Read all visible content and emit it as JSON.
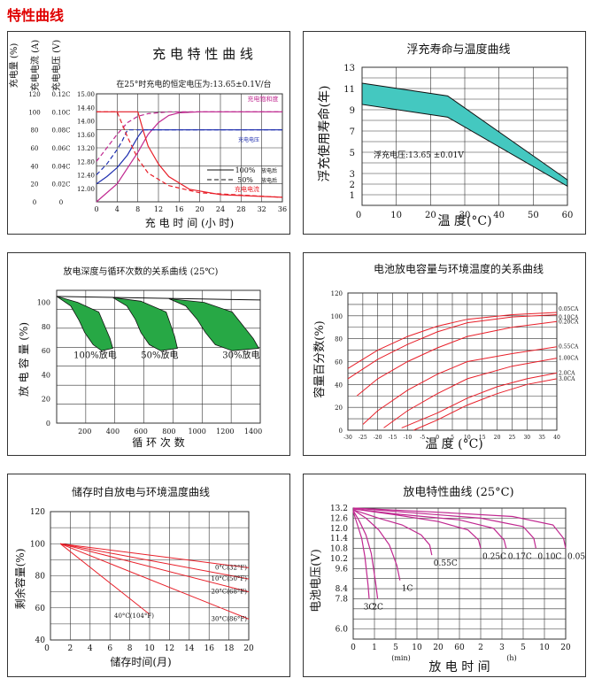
{
  "page_title": "特性曲线",
  "colors": {
    "red": "#e8202a",
    "magenta": "#c02890",
    "blue": "#2030b0",
    "teal": "#44c8c0",
    "green": "#27a845",
    "grid": "#333333",
    "title_red": "#e00000"
  },
  "chart_data": [
    {
      "id": "charge",
      "type": "line",
      "title": "充 电 特 性 曲 线",
      "subtitle": "在25°时充电的恒定电压为:13.65±0.1V/台",
      "xlabel": "充 电 时 间 (小 时)",
      "y_axis_titles": [
        "充电量 (%)",
        "充电电流 (A)",
        "充电电压 (V)"
      ],
      "x_ticks": [
        0,
        4,
        8,
        12,
        16,
        20,
        24,
        28,
        32,
        36
      ],
      "xlim": [
        0,
        36
      ],
      "ylim": [
        0,
        120
      ],
      "y_ticks_charge": [
        0,
        20,
        40,
        60,
        80,
        100,
        120
      ],
      "y_ticks_current": [
        "0",
        "0.02C",
        "0.04C",
        "0.06C",
        "0.08C",
        "0.10C",
        "0.12C"
      ],
      "y_ticks_voltage": [
        "",
        "12.00",
        "12.40",
        "12.80",
        "13.20",
        "13.60",
        "14.00",
        "14.40",
        "15.00"
      ],
      "annotations": [
        "充电饱和度",
        "充电电压",
        "充电电流"
      ],
      "legend": [
        {
          "line": "100%",
          "label": "放电后"
        },
        {
          "line": "50%",
          "label": "放电后"
        }
      ],
      "series": [
        {
          "style": "solid",
          "color": "magenta",
          "points": [
            [
              0,
              0
            ],
            [
              4,
              20
            ],
            [
              8,
              55
            ],
            [
              10,
              75
            ],
            [
              12,
              88
            ],
            [
              14,
              96
            ],
            [
              16,
              99
            ],
            [
              20,
              100
            ],
            [
              36,
              100
            ]
          ]
        },
        {
          "style": "dashed",
          "color": "magenta",
          "points": [
            [
              0,
              45
            ],
            [
              2,
              60
            ],
            [
              4,
              75
            ],
            [
              6,
              88
            ],
            [
              8,
              95
            ],
            [
              10,
              98
            ],
            [
              14,
              100
            ],
            [
              36,
              100
            ]
          ]
        },
        {
          "style": "solid",
          "color": "blue",
          "points": [
            [
              0,
              20
            ],
            [
              2,
              28
            ],
            [
              4,
              38
            ],
            [
              6,
              52
            ],
            [
              8,
              72
            ],
            [
              9,
              80
            ],
            [
              36,
              80
            ]
          ]
        },
        {
          "style": "dashed",
          "color": "blue",
          "points": [
            [
              0,
              30
            ],
            [
              2,
              42
            ],
            [
              4,
              58
            ],
            [
              5,
              68
            ],
            [
              6,
              80
            ],
            [
              36,
              80
            ]
          ]
        },
        {
          "style": "solid",
          "color": "red",
          "points": [
            [
              0,
              100
            ],
            [
              8,
              100
            ],
            [
              9,
              80
            ],
            [
              10,
              62
            ],
            [
              12,
              42
            ],
            [
              14,
              28
            ],
            [
              18,
              14
            ],
            [
              24,
              8
            ],
            [
              36,
              5
            ]
          ]
        },
        {
          "style": "dashed",
          "color": "red",
          "points": [
            [
              0,
              100
            ],
            [
              4,
              100
            ],
            [
              6,
              72
            ],
            [
              8,
              48
            ],
            [
              10,
              32
            ],
            [
              14,
              18
            ],
            [
              20,
              10
            ],
            [
              36,
              5
            ]
          ]
        }
      ]
    },
    {
      "id": "float",
      "type": "area",
      "title": "浮充寿命与温度曲线",
      "ylabel": "浮充使用寿命(年)",
      "xlabel": "温 度(°C)",
      "x_ticks": [
        10,
        20,
        30,
        40,
        50,
        60
      ],
      "y_ticks": [
        1,
        2,
        3,
        5,
        7,
        9,
        11,
        13
      ],
      "xlim": [
        0,
        60
      ],
      "ylim": [
        0,
        13
      ],
      "annotation": "浮充电压:13.65 ±0.01V",
      "band_upper": [
        [
          0,
          11.5
        ],
        [
          25,
          10.3
        ],
        [
          60,
          2.4
        ]
      ],
      "band_lower": [
        [
          0,
          9.5
        ],
        [
          25,
          8.3
        ],
        [
          60,
          1.8
        ]
      ]
    },
    {
      "id": "cycle",
      "type": "area",
      "title": "放电深度与循环次数的关系曲线 (25℃)",
      "ylabel": "放 电 容 量 (%)",
      "xlabel": "循 环 次 数",
      "x_ticks": [
        200,
        400,
        600,
        800,
        1000,
        1200,
        1400
      ],
      "y_ticks": [
        0,
        20,
        40,
        60,
        80,
        100
      ],
      "xlim": [
        0,
        1450
      ],
      "ylim": [
        0,
        110
      ],
      "groups": [
        {
          "label": "100%放电",
          "upper": [
            [
              0,
              105
            ],
            [
              150,
              100
            ],
            [
              300,
              92
            ],
            [
              380,
              70
            ],
            [
              400,
              62
            ]
          ],
          "lower": [
            [
              0,
              105
            ],
            [
              100,
              97
            ],
            [
              160,
              85
            ],
            [
              200,
              75
            ],
            [
              260,
              65
            ],
            [
              320,
              60
            ],
            [
              400,
              62
            ]
          ]
        },
        {
          "label": "50%放电",
          "upper": [
            [
              400,
              104
            ],
            [
              600,
              101
            ],
            [
              780,
              92
            ],
            [
              840,
              72
            ],
            [
              860,
              62
            ]
          ],
          "lower": [
            [
              400,
              104
            ],
            [
              500,
              97
            ],
            [
              560,
              86
            ],
            [
              600,
              75
            ],
            [
              660,
              65
            ],
            [
              740,
              60
            ],
            [
              860,
              62
            ]
          ]
        },
        {
          "label": "30%放电",
          "upper": [
            [
              800,
              103
            ],
            [
              1050,
              100
            ],
            [
              1250,
              92
            ],
            [
              1400,
              70
            ],
            [
              1440,
              62
            ]
          ],
          "lower": [
            [
              800,
              103
            ],
            [
              920,
              97
            ],
            [
              1000,
              86
            ],
            [
              1060,
              75
            ],
            [
              1130,
              65
            ],
            [
              1250,
              60
            ],
            [
              1440,
              62
            ]
          ]
        }
      ]
    },
    {
      "id": "temp_capacity",
      "type": "line",
      "title": "电池放电容量与环境温度的关系曲线",
      "ylabel": "容量百分数(%)",
      "xlabel": "温 度 (°C)",
      "x_ticks": [
        -30,
        -25,
        -20,
        -15,
        -10,
        -5,
        0,
        5,
        10,
        15,
        20,
        25,
        30,
        35,
        40
      ],
      "y_ticks": [
        0,
        20,
        40,
        60,
        80,
        100,
        120
      ],
      "xlim": [
        -30,
        40
      ],
      "ylim": [
        0,
        120
      ],
      "series": [
        {
          "name": "0.05CA",
          "points": [
            [
              -30,
              54
            ],
            [
              -20,
              70
            ],
            [
              -10,
              82
            ],
            [
              0,
              91
            ],
            [
              10,
              97
            ],
            [
              25,
              101
            ],
            [
              40,
              103
            ]
          ]
        },
        {
          "name": "0.10CA",
          "points": [
            [
              -30,
              45
            ],
            [
              -20,
              62
            ],
            [
              -10,
              75
            ],
            [
              0,
              86
            ],
            [
              10,
              94
            ],
            [
              25,
              99
            ],
            [
              40,
              101
            ]
          ]
        },
        {
          "name": "0.20CA",
          "points": [
            [
              -27,
              30
            ],
            [
              -20,
              45
            ],
            [
              -10,
              60
            ],
            [
              0,
              72
            ],
            [
              10,
              82
            ],
            [
              25,
              90
            ],
            [
              40,
              95
            ]
          ]
        },
        {
          "name": "0.55CA",
          "points": [
            [
              -25,
              5
            ],
            [
              -20,
              17
            ],
            [
              -10,
              35
            ],
            [
              0,
              49
            ],
            [
              10,
              60
            ],
            [
              25,
              67
            ],
            [
              40,
              73
            ]
          ]
        },
        {
          "name": "1.00CA",
          "points": [
            [
              -18,
              2
            ],
            [
              -10,
              17
            ],
            [
              0,
              32
            ],
            [
              10,
              45
            ],
            [
              25,
              56
            ],
            [
              40,
              63
            ]
          ]
        },
        {
          "name": "2.0CA",
          "points": [
            [
              -12,
              2
            ],
            [
              0,
              15
            ],
            [
              10,
              28
            ],
            [
              20,
              38
            ],
            [
              30,
              45
            ],
            [
              40,
              50
            ]
          ]
        },
        {
          "name": "3.0CA",
          "points": [
            [
              -8,
              0
            ],
            [
              0,
              9
            ],
            [
              10,
              22
            ],
            [
              20,
              32
            ],
            [
              30,
              40
            ],
            [
              40,
              45
            ]
          ]
        }
      ]
    },
    {
      "id": "self_discharge",
      "type": "line",
      "title": "储存时自放电与环境温度曲线",
      "ylabel": "剩余容量(%)",
      "xlabel": "储存时间(月)",
      "x_ticks": [
        2,
        4,
        6,
        8,
        10,
        12,
        14,
        16,
        18,
        20
      ],
      "y_ticks": [
        40,
        60,
        80,
        100,
        120
      ],
      "xlim": [
        0,
        20
      ],
      "ylim": [
        40,
        120
      ],
      "series": [
        {
          "name": "0°C(32°F)",
          "points": [
            [
              1,
              100
            ],
            [
              20,
              85
            ]
          ]
        },
        {
          "name": "10°C(50°F)",
          "points": [
            [
              1,
              100
            ],
            [
              20,
              78
            ]
          ]
        },
        {
          "name": "20°C(68°F)",
          "points": [
            [
              1,
              100
            ],
            [
              20,
              70
            ]
          ]
        },
        {
          "name": "30°C(86°F)",
          "points": [
            [
              1,
              100
            ],
            [
              20,
              53
            ]
          ]
        },
        {
          "name": "40°C(104°F)",
          "points": [
            [
              1,
              100
            ],
            [
              10,
              56
            ]
          ]
        }
      ]
    },
    {
      "id": "discharge",
      "type": "line",
      "title": "放电特性曲线 (25°C)",
      "ylabel": "电池电压(V)",
      "xlabel": "放 电 时 间",
      "x_tick_labels": [
        "0",
        "1",
        "5",
        "10",
        "20",
        "60",
        "2",
        "3",
        "5",
        "10",
        "20"
      ],
      "unit_min": "(min)",
      "unit_h": "(h)",
      "y_ticks": [
        6.0,
        7.8,
        8.4,
        9.6,
        10.2,
        10.8,
        11.4,
        12.0,
        12.6,
        13.2
      ],
      "ylim": [
        5.4,
        13.2
      ],
      "series": [
        {
          "name": "3C",
          "points": [
            [
              0.0,
              13.0
            ],
            [
              0.2,
              12.2
            ],
            [
              0.4,
              11.4
            ],
            [
              0.55,
              10.3
            ],
            [
              0.7,
              8.6
            ],
            [
              0.75,
              7.8
            ]
          ]
        },
        {
          "name": "2C",
          "points": [
            [
              0.0,
              13.05
            ],
            [
              0.3,
              12.4
            ],
            [
              0.6,
              11.6
            ],
            [
              0.85,
              10.5
            ],
            [
              1.05,
              8.8
            ],
            [
              1.15,
              7.8
            ]
          ]
        },
        {
          "name": "1C",
          "points": [
            [
              0.0,
              13.1
            ],
            [
              0.6,
              12.6
            ],
            [
              1.2,
              11.9
            ],
            [
              1.7,
              11.0
            ],
            [
              2.05,
              9.8
            ],
            [
              2.2,
              8.9
            ]
          ]
        },
        {
          "name": "0.55C",
          "points": [
            [
              0.0,
              13.1
            ],
            [
              1.2,
              12.6
            ],
            [
              2.3,
              12.2
            ],
            [
              3.2,
              11.6
            ],
            [
              3.6,
              11.0
            ],
            [
              3.7,
              10.4
            ]
          ]
        },
        {
          "name": "0.25C",
          "points": [
            [
              0.0,
              13.15
            ],
            [
              2,
              12.8
            ],
            [
              4,
              12.4
            ],
            [
              5.4,
              11.9
            ],
            [
              5.9,
              11.3
            ],
            [
              6.0,
              10.8
            ]
          ]
        },
        {
          "name": "0.17C",
          "points": [
            [
              0.0,
              13.15
            ],
            [
              2,
              12.85
            ],
            [
              5,
              12.5
            ],
            [
              6.6,
              12.0
            ],
            [
              7.1,
              11.3
            ],
            [
              7.2,
              10.8
            ]
          ]
        },
        {
          "name": "0.10C",
          "points": [
            [
              0.0,
              13.2
            ],
            [
              3,
              12.9
            ],
            [
              6,
              12.6
            ],
            [
              8.0,
              12.1
            ],
            [
              8.5,
              11.4
            ],
            [
              8.6,
              10.8
            ]
          ]
        },
        {
          "name": "0.05C",
          "points": [
            [
              0.0,
              13.2
            ],
            [
              4,
              12.95
            ],
            [
              7.5,
              12.7
            ],
            [
              9.4,
              12.2
            ],
            [
              9.9,
              11.4
            ],
            [
              10.0,
              10.8
            ]
          ]
        }
      ]
    }
  ]
}
